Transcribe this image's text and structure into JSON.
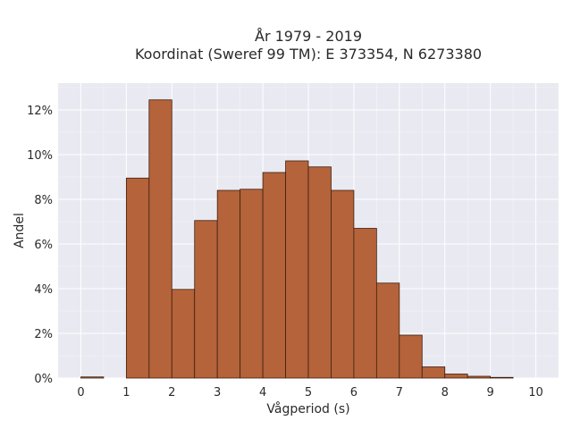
{
  "chart_data": {
    "type": "bar",
    "title": "År 1979 - 2019",
    "subtitle": "Koordinat (Sweref 99 TM): E 373354, N 6273380",
    "xlabel": "Vågperiod (s)",
    "ylabel": "Andel",
    "bin_width": 0.5,
    "bins_start": [
      0,
      1,
      1.5,
      2,
      2.5,
      3,
      3.5,
      4,
      4.5,
      5,
      5.5,
      6,
      6.5,
      7,
      7.5,
      8,
      8.5,
      9
    ],
    "values": [
      0.05,
      8.95,
      12.45,
      3.97,
      7.05,
      8.4,
      8.45,
      9.2,
      9.72,
      9.45,
      8.4,
      6.7,
      4.25,
      1.92,
      0.5,
      0.18,
      0.08,
      0.03
    ],
    "xlim": [
      -0.5,
      10.5
    ],
    "ylim": [
      0,
      13.2
    ],
    "xticks": [
      "0",
      "1",
      "2",
      "3",
      "4",
      "5",
      "6",
      "7",
      "8",
      "9",
      "10"
    ],
    "yticks": [
      "0%",
      "2%",
      "4%",
      "6%",
      "8%",
      "10%",
      "12%"
    ],
    "ytick_values": [
      0,
      2,
      4,
      6,
      8,
      10,
      12
    ],
    "grid": true,
    "bar_color": "#b5633a",
    "bar_edge_color": "#3d1f10",
    "plot_background": "#e9e9f1"
  }
}
